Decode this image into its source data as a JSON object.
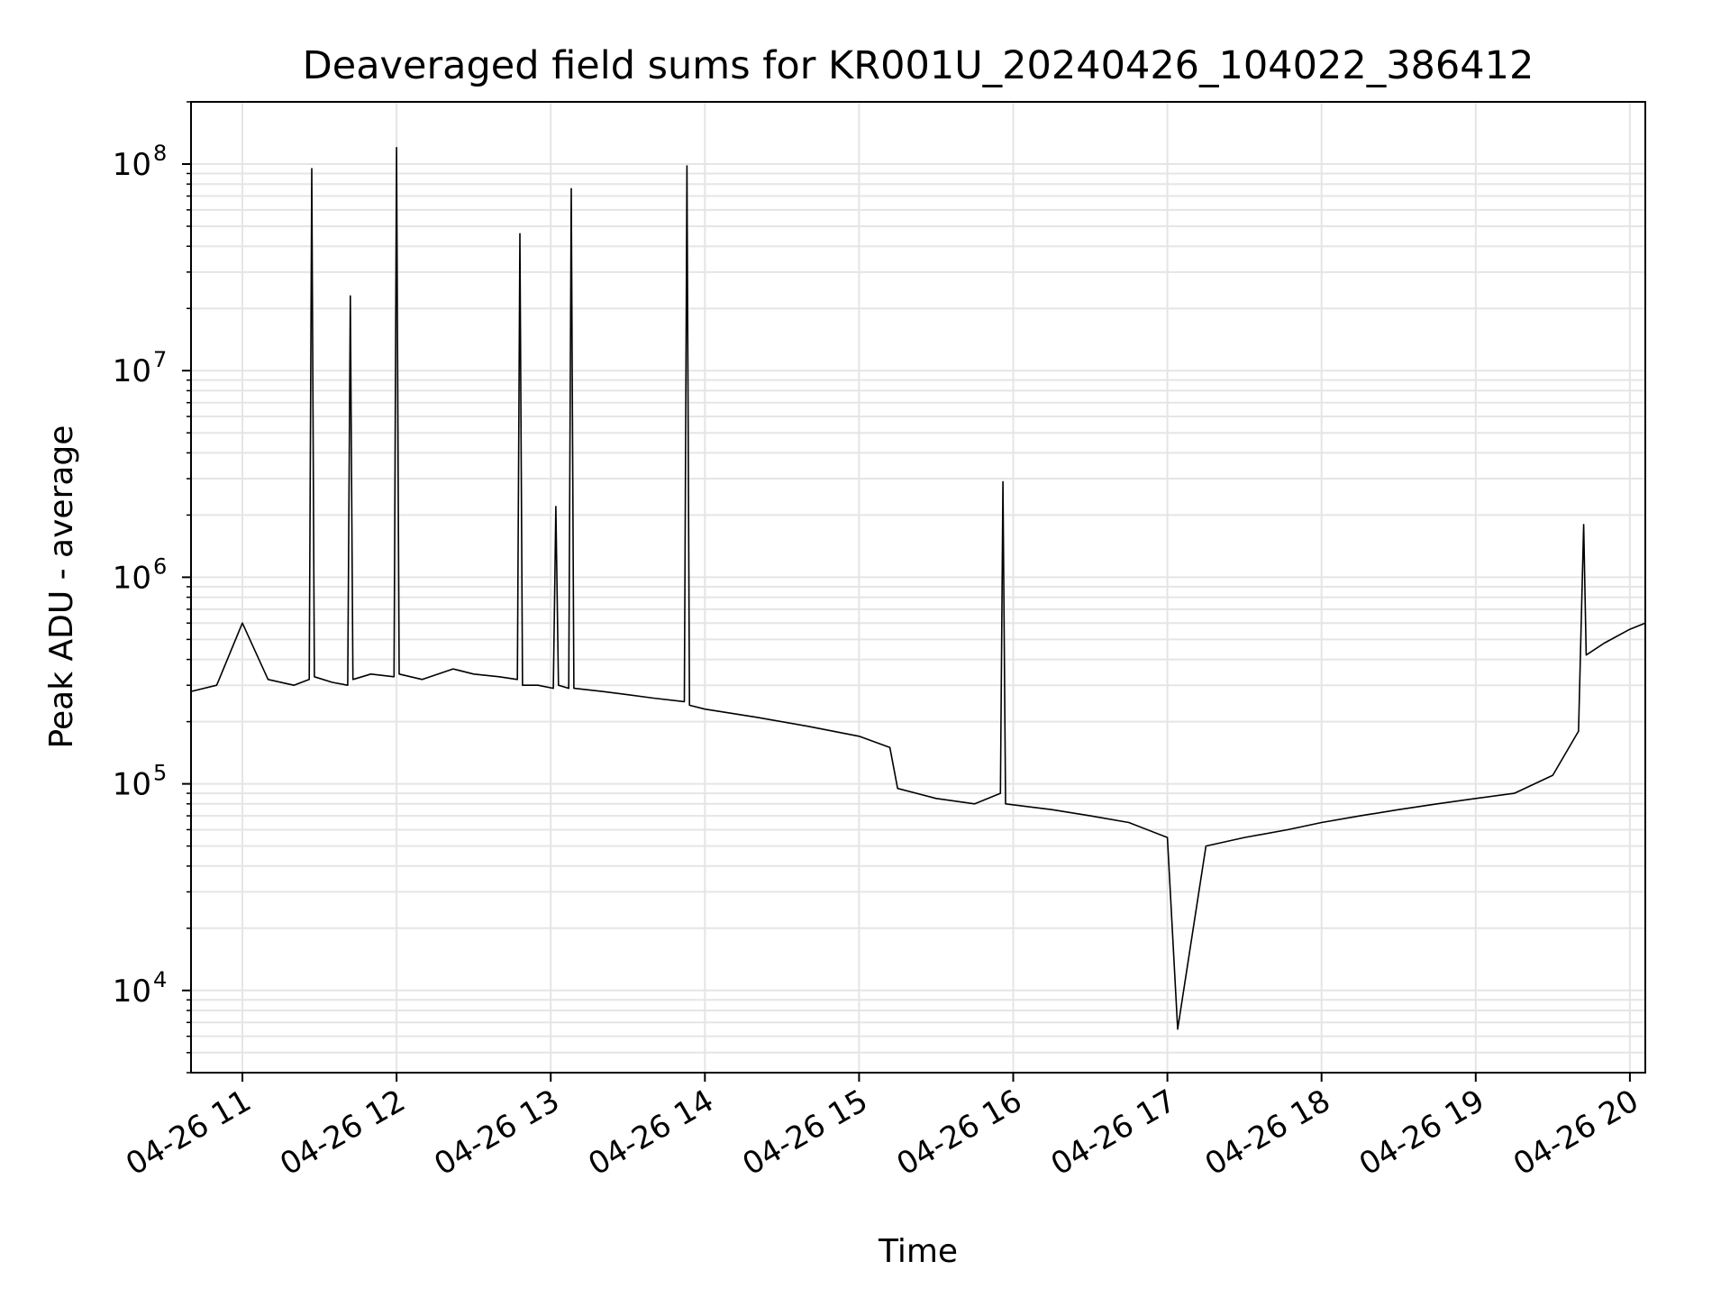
{
  "chart_data": {
    "type": "line",
    "title": "Deaveraged field sums for KR001U_20240426_104022_386412",
    "xlabel": "Time",
    "ylabel": "Peak ADU - average",
    "y_scale": "log",
    "xlim": [
      "2024-04-26 10:40",
      "2024-04-26 20:06"
    ],
    "ylim": [
      4000,
      200000000
    ],
    "x_ticks": [
      "2024-04-26 11:00",
      "2024-04-26 12:00",
      "2024-04-26 13:00",
      "2024-04-26 14:00",
      "2024-04-26 15:00",
      "2024-04-26 16:00",
      "2024-04-26 17:00",
      "2024-04-26 18:00",
      "2024-04-26 19:00",
      "2024-04-26 20:00"
    ],
    "x_tick_labels": [
      "04-26 11",
      "04-26 12",
      "04-26 13",
      "04-26 14",
      "04-26 15",
      "04-26 16",
      "04-26 17",
      "04-26 18",
      "04-26 19",
      "04-26 20"
    ],
    "y_ticks": [
      {
        "value": 10000,
        "base": "10",
        "exp": "4"
      },
      {
        "value": 100000,
        "base": "10",
        "exp": "5"
      },
      {
        "value": 1000000,
        "base": "10",
        "exp": "6"
      },
      {
        "value": 10000000,
        "base": "10",
        "exp": "7"
      },
      {
        "value": 100000000,
        "base": "10",
        "exp": "8"
      }
    ],
    "grid": true,
    "line_color": "#000000",
    "series": [
      {
        "x": [
          "2024-04-26 10:40",
          "2024-04-26 10:50",
          "2024-04-26 11:00",
          "2024-04-26 11:10",
          "2024-04-26 11:20",
          "2024-04-26 11:26",
          "2024-04-26 11:27",
          "2024-04-26 11:28",
          "2024-04-26 11:35",
          "2024-04-26 11:41",
          "2024-04-26 11:42",
          "2024-04-26 11:43",
          "2024-04-26 11:50",
          "2024-04-26 11:59",
          "2024-04-26 12:00",
          "2024-04-26 12:01",
          "2024-04-26 12:10",
          "2024-04-26 12:22",
          "2024-04-26 12:30",
          "2024-04-26 12:40",
          "2024-04-26 12:47",
          "2024-04-26 12:48",
          "2024-04-26 12:49",
          "2024-04-26 12:55",
          "2024-04-26 13:01",
          "2024-04-26 13:02",
          "2024-04-26 13:03",
          "2024-04-26 13:07",
          "2024-04-26 13:08",
          "2024-04-26 13:09",
          "2024-04-26 13:20",
          "2024-04-26 13:30",
          "2024-04-26 13:40",
          "2024-04-26 13:52",
          "2024-04-26 13:53",
          "2024-04-26 13:54",
          "2024-04-26 14:00",
          "2024-04-26 14:20",
          "2024-04-26 14:40",
          "2024-04-26 15:00",
          "2024-04-26 15:12",
          "2024-04-26 15:15",
          "2024-04-26 15:30",
          "2024-04-26 15:45",
          "2024-04-26 15:55",
          "2024-04-26 15:56",
          "2024-04-26 15:57",
          "2024-04-26 16:15",
          "2024-04-26 16:30",
          "2024-04-26 16:45",
          "2024-04-26 17:00",
          "2024-04-26 17:04",
          "2024-04-26 17:15",
          "2024-04-26 17:30",
          "2024-04-26 17:47",
          "2024-04-26 18:00",
          "2024-04-26 18:15",
          "2024-04-26 18:30",
          "2024-04-26 18:45",
          "2024-04-26 19:00",
          "2024-04-26 19:15",
          "2024-04-26 19:30",
          "2024-04-26 19:40",
          "2024-04-26 19:42",
          "2024-04-26 19:43",
          "2024-04-26 19:50",
          "2024-04-26 20:00",
          "2024-04-26 20:06"
        ],
        "y": [
          280000,
          300000,
          600000,
          320000,
          300000,
          320000,
          95000000,
          330000,
          310000,
          300000,
          23000000,
          320000,
          340000,
          330000,
          120000000,
          340000,
          320000,
          360000,
          340000,
          330000,
          320000,
          46000000,
          300000,
          300000,
          290000,
          2200000,
          300000,
          290000,
          76000000,
          290000,
          280000,
          270000,
          260000,
          250000,
          98000000,
          240000,
          230000,
          210000,
          190000,
          170000,
          150000,
          95000,
          85000,
          80000,
          90000,
          2900000,
          80000,
          75000,
          70000,
          65000,
          55000,
          6500,
          50000,
          55000,
          60000,
          65000,
          70000,
          75000,
          80000,
          85000,
          90000,
          110000,
          180000,
          1800000,
          420000,
          480000,
          560000,
          600000
        ]
      }
    ]
  }
}
